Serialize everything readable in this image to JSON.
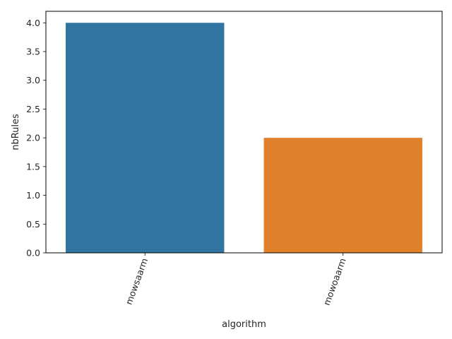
{
  "chart_data": {
    "type": "bar",
    "categories": [
      "mowsaarm",
      "mowoaarm"
    ],
    "values": [
      4.0,
      2.0
    ],
    "colors": [
      "#3274a1",
      "#e1812c"
    ],
    "xlabel": "algorithm",
    "ylabel": "nbRules",
    "ylim": [
      0,
      4.2
    ],
    "yticks": [
      0.0,
      0.5,
      1.0,
      1.5,
      2.0,
      2.5,
      3.0,
      3.5,
      4.0
    ],
    "ytick_labels": [
      "0.0",
      "0.5",
      "1.0",
      "1.5",
      "2.0",
      "2.5",
      "3.0",
      "3.5",
      "4.0"
    ],
    "xtick_rotation_deg": 70,
    "grid": false,
    "legend": "none"
  }
}
